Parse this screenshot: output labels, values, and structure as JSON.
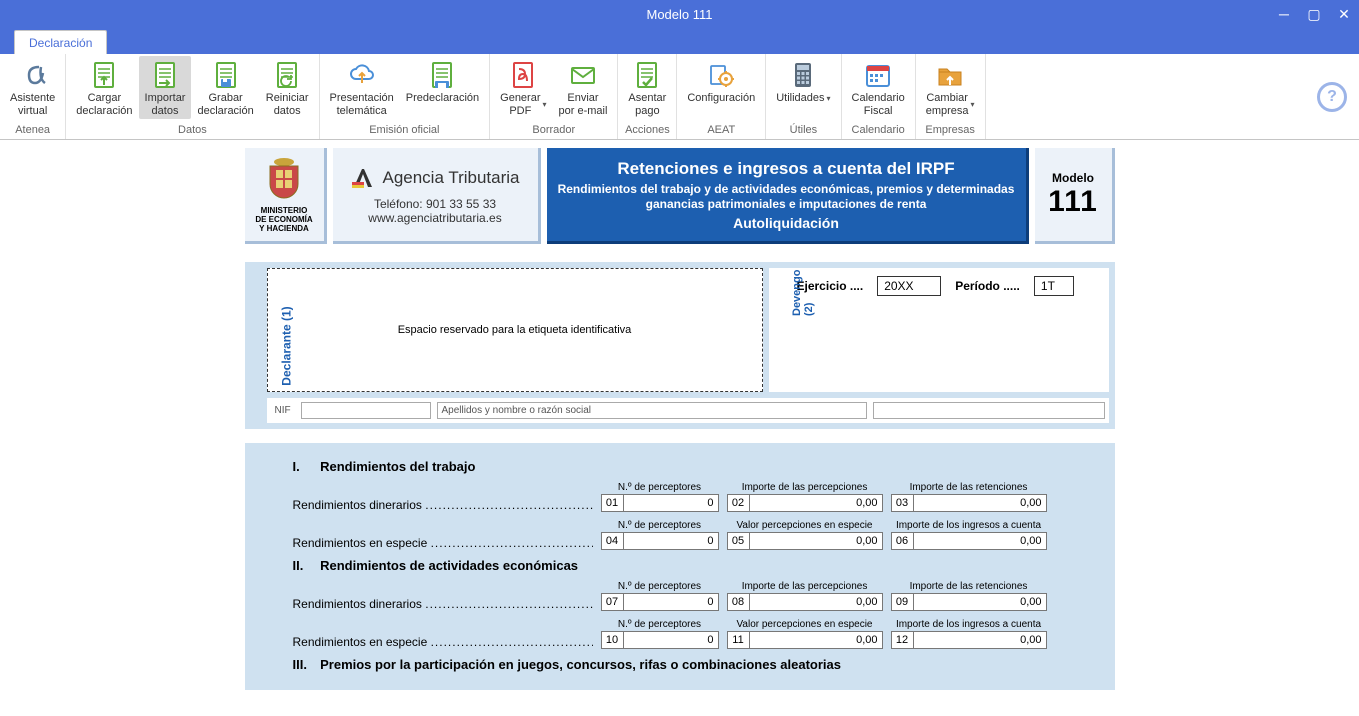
{
  "window": {
    "title": "Modelo 111"
  },
  "tabs": {
    "declaration": "Declaración"
  },
  "ribbon": {
    "groups": [
      {
        "label": "Atenea",
        "items": [
          {
            "id": "asistente",
            "label": "Asistente\nvirtual",
            "icon": "alpha"
          }
        ]
      },
      {
        "label": "Datos",
        "items": [
          {
            "id": "cargar",
            "label": "Cargar\ndeclaración",
            "icon": "doc-up"
          },
          {
            "id": "importar",
            "label": "Importar\ndatos",
            "icon": "doc-right",
            "active": true
          },
          {
            "id": "grabar",
            "label": "Grabar\ndeclaración",
            "icon": "doc-save"
          },
          {
            "id": "reiniciar",
            "label": "Reiniciar\ndatos",
            "icon": "doc-refresh"
          }
        ]
      },
      {
        "label": "Emisión oficial",
        "items": [
          {
            "id": "presentacion",
            "label": "Presentación\ntelemática",
            "icon": "cloud-up"
          },
          {
            "id": "predeclaracion",
            "label": "Predeclaración",
            "icon": "doc-print"
          }
        ]
      },
      {
        "label": "Borrador",
        "items": [
          {
            "id": "pdf",
            "label": "Generar\nPDF",
            "icon": "pdf",
            "dropdown": true
          },
          {
            "id": "email",
            "label": "Enviar\npor e-mail",
            "icon": "mail"
          }
        ]
      },
      {
        "label": "Acciones",
        "items": [
          {
            "id": "asentar",
            "label": "Asentar\npago",
            "icon": "doc-check"
          }
        ]
      },
      {
        "label": "AEAT",
        "items": [
          {
            "id": "config",
            "label": "Configuración",
            "icon": "gear"
          }
        ]
      },
      {
        "label": "Útiles",
        "items": [
          {
            "id": "utilidades",
            "label": "Utilidades",
            "icon": "calc",
            "dropdown": true
          }
        ]
      },
      {
        "label": "Calendario",
        "items": [
          {
            "id": "calendario",
            "label": "Calendario\nFiscal",
            "icon": "calendar"
          }
        ]
      },
      {
        "label": "Empresas",
        "items": [
          {
            "id": "cambiar",
            "label": "Cambiar\nempresa",
            "icon": "folder",
            "dropdown": true
          }
        ]
      }
    ]
  },
  "form": {
    "ministry": "MINISTERIO\nDE ECONOMÍA\nY HACIENDA",
    "agency": "Agencia Tributaria",
    "phone": "Teléfono: 901 33 55 33",
    "url": "www.agenciatributaria.es",
    "title": "Retenciones e ingresos a cuenta del IRPF",
    "subtitle": "Rendimientos del trabajo y de actividades económicas, premios y determinadas ganancias patrimoniales e imputaciones de renta",
    "auto": "Autoliquidación",
    "model_label": "Modelo",
    "model_number": "111",
    "declarante_label": "Declarante (1)",
    "etiqueta_text": "Espacio reservado para la etiqueta identificativa",
    "devengo_label": "Devengo\n(2)",
    "ejercicio_label": "Ejercicio ....",
    "ejercicio_value": "20XX",
    "periodo_label": "Período .....",
    "periodo_value": "1T",
    "nif_label": "NIF",
    "apellidos_label": "Apellidos y nombre o razón social",
    "sections": [
      {
        "roman": "I.",
        "title": "Rendimientos del trabajo",
        "rows": [
          {
            "label": "Rendimientos dinerarios",
            "cells": [
              {
                "head": "N.º de perceptores",
                "num": "01",
                "val": "0"
              },
              {
                "head": "Importe de las percepciones",
                "num": "02",
                "val": "0,00",
                "wide": true
              },
              {
                "head": "Importe de las retenciones",
                "num": "03",
                "val": "0,00",
                "wide": true
              }
            ]
          },
          {
            "label": "Rendimientos en especie",
            "cells": [
              {
                "head": "N.º de perceptores",
                "num": "04",
                "val": "0"
              },
              {
                "head": "Valor percepciones en especie",
                "num": "05",
                "val": "0,00",
                "wide": true
              },
              {
                "head": "Importe de los ingresos a cuenta",
                "num": "06",
                "val": "0,00",
                "wide": true
              }
            ]
          }
        ]
      },
      {
        "roman": "II.",
        "title": "Rendimientos de actividades económicas",
        "rows": [
          {
            "label": "Rendimientos dinerarios",
            "cells": [
              {
                "head": "N.º de perceptores",
                "num": "07",
                "val": "0"
              },
              {
                "head": "Importe de las percepciones",
                "num": "08",
                "val": "0,00",
                "wide": true
              },
              {
                "head": "Importe de las retenciones",
                "num": "09",
                "val": "0,00",
                "wide": true
              }
            ]
          },
          {
            "label": "Rendimientos en especie",
            "cells": [
              {
                "head": "N.º de perceptores",
                "num": "10",
                "val": "0"
              },
              {
                "head": "Valor percepciones en especie",
                "num": "11",
                "val": "0,00",
                "wide": true
              },
              {
                "head": "Importe de los ingresos a cuenta",
                "num": "12",
                "val": "0,00",
                "wide": true
              }
            ]
          }
        ]
      },
      {
        "roman": "III.",
        "title": "Premios por la participación en juegos, concursos, rifas o combinaciones aleatorias",
        "rows": []
      }
    ]
  },
  "colors": {
    "titlebar": "#4a6fd8",
    "form_blue": "#1d5fb0",
    "form_light": "#cfe1f0",
    "icon_green": "#5faf3e",
    "icon_blue": "#4a8fd8",
    "icon_orange": "#e8a23c",
    "icon_red": "#d44"
  }
}
